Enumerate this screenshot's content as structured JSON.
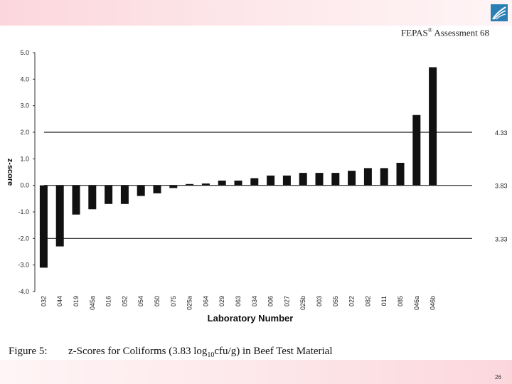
{
  "header": {
    "brand": "FEPAS",
    "mark": "®",
    "assessment": "Assessment 68"
  },
  "chart_data": {
    "type": "bar",
    "title": "",
    "xlabel": "Laboratory Number",
    "ylabel": "z-score",
    "ylim": [
      -4.0,
      5.0
    ],
    "yticks": [
      "-4.0",
      "-3.0",
      "-2.0",
      "-1.0",
      "0.0",
      "1.0",
      "2.0",
      "3.0",
      "4.0",
      "5.0"
    ],
    "ytick_values": [
      -4,
      -3,
      -2,
      -1,
      0,
      1,
      2,
      3,
      4,
      5
    ],
    "categories": [
      "032",
      "044",
      "019",
      "045a",
      "016",
      "052",
      "054",
      "050",
      "075",
      "025a",
      "064",
      "029",
      "063",
      "034",
      "006",
      "027",
      "025b",
      "003",
      "055",
      "022",
      "082",
      "011",
      "085",
      "046a",
      "046b"
    ],
    "values": [
      -3.1,
      -2.3,
      -1.1,
      -0.9,
      -0.7,
      -0.7,
      -0.4,
      -0.3,
      -0.1,
      0.05,
      0.07,
      0.18,
      0.18,
      0.27,
      0.37,
      0.37,
      0.47,
      0.47,
      0.47,
      0.55,
      0.65,
      0.65,
      0.85,
      2.65,
      4.45
    ],
    "reference_lines": [
      {
        "z": 2.0,
        "label": "4.33"
      },
      {
        "z": 0.0,
        "label": "3.83"
      },
      {
        "z": -2.0,
        "label": "3.33"
      }
    ],
    "bar_color": "#111111"
  },
  "caption": {
    "figure": "Figure 5:",
    "text_before": "z-Scores for Coliforms (3.83 log",
    "subscript": "10",
    "text_after": "cfu/g) in Beef Test Material"
  },
  "page_number": "26"
}
